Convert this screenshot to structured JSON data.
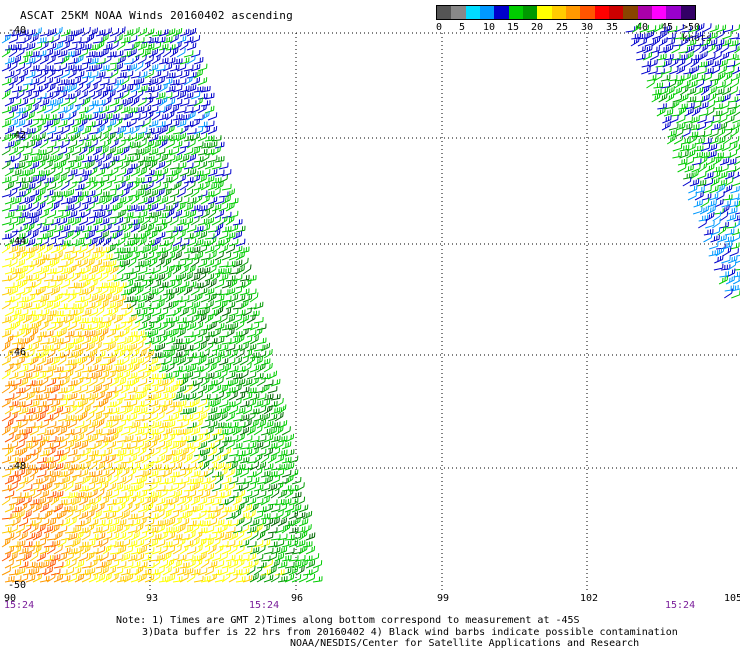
{
  "title": "ASCAT 25KM NOAA Winds 20160402 ascending",
  "legend": {
    "labels": [
      "0",
      "5",
      "10",
      "15",
      "20",
      "25",
      "30",
      "35",
      "40",
      "45",
      ">50 knots"
    ],
    "colors": [
      "#555555",
      "#888888",
      "#00ddff",
      "#0099ff",
      "#0000cc",
      "#00cc00",
      "#009900",
      "#ffff00",
      "#ffcc00",
      "#ff9900",
      "#ff5500",
      "#ff0000",
      "#cc0000",
      "#884400",
      "#aa00aa",
      "#ff00ff",
      "#9900cc",
      "#330066"
    ]
  },
  "lat_labels": [
    "-40",
    "-42",
    "-44",
    "-46",
    "-48",
    "-50"
  ],
  "lon_labels": [
    "90",
    "93",
    "96",
    "99",
    "102",
    "105"
  ],
  "time_labels": [
    "15:24",
    "15:24",
    "15:24"
  ],
  "notes": [
    "Note: 1) Times are GMT 2)Times along bottom correspond to measurement at -45S",
    "3)Data buffer is 22 hrs from 20160402 4) Black wind barbs indicate possible contamination",
    "NOAA/NESDIS/Center for Satellite Applications and Research"
  ]
}
